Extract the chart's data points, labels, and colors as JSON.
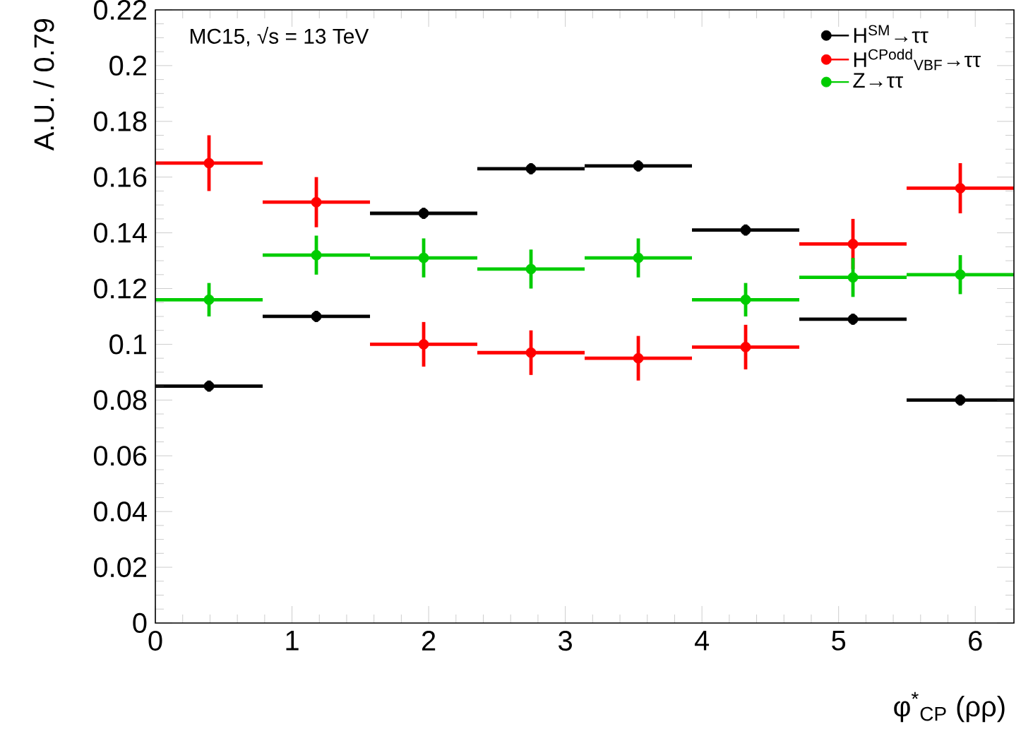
{
  "chart_data": {
    "type": "scatter",
    "ylabel": "A.U. / 0.79",
    "xlabel": "φ$^{*}$$_{CP}$ (ρρ)",
    "annotations": [
      "MC15, √s = 13 TeV"
    ],
    "x": [
      0.3927,
      1.1781,
      1.9635,
      2.7489,
      3.5343,
      4.3197,
      5.1051,
      5.8905
    ],
    "xlim": [
      0,
      6.2832
    ],
    "ylim": [
      0,
      0.22
    ],
    "xticks": [
      0,
      1,
      2,
      3,
      4,
      5,
      6
    ],
    "yticks": [
      0,
      0.02,
      0.04,
      0.06,
      0.08,
      0.1,
      0.12,
      0.14,
      0.16,
      0.18,
      0.2,
      0.22
    ],
    "marker": "circle",
    "legend": "top right",
    "grid": false,
    "series": [
      {
        "name": "H$^{SM}$→ττ",
        "color": "#000000",
        "values": [
          0.085,
          0.11,
          0.147,
          0.163,
          0.164,
          0.141,
          0.109,
          0.08
        ],
        "errors": [
          0.002,
          0.002,
          0.002,
          0.002,
          0.002,
          0.002,
          0.002,
          0.002
        ],
        "xerrors": [
          0.3927,
          0.3927,
          0.3927,
          0.3927,
          0.3927,
          0.3927,
          0.3927,
          0.3927
        ]
      },
      {
        "name": "H$^{CPodd}$$_{VBF}$→ττ",
        "color": "#ff0000",
        "values": [
          0.165,
          0.151,
          0.1,
          0.097,
          0.095,
          0.099,
          0.136,
          0.156
        ],
        "errors": [
          0.01,
          0.009,
          0.008,
          0.008,
          0.008,
          0.008,
          0.009,
          0.009
        ],
        "xerrors": [
          0.3927,
          0.3927,
          0.3927,
          0.3927,
          0.3927,
          0.3927,
          0.3927,
          0.3927
        ]
      },
      {
        "name": "Z→ττ",
        "color": "#00cc00",
        "values": [
          0.116,
          0.132,
          0.131,
          0.127,
          0.131,
          0.116,
          0.124,
          0.125
        ],
        "errors": [
          0.006,
          0.007,
          0.007,
          0.007,
          0.007,
          0.006,
          0.007,
          0.007
        ],
        "xerrors": [
          0.3927,
          0.3927,
          0.3927,
          0.3927,
          0.3927,
          0.3927,
          0.3927,
          0.3927
        ]
      }
    ]
  }
}
